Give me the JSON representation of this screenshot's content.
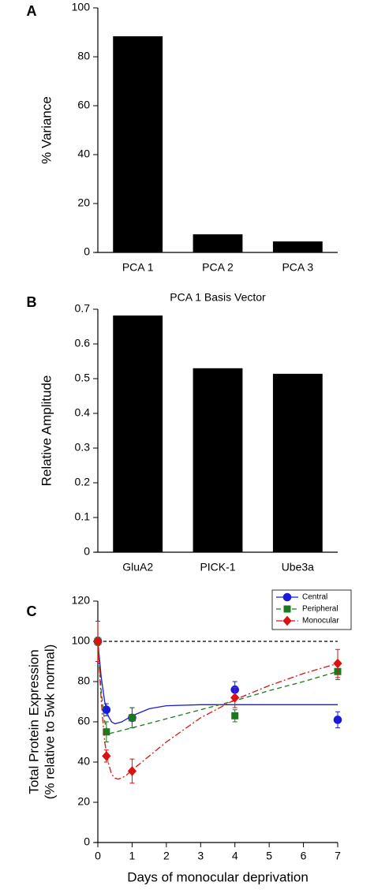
{
  "chart_data": [
    {
      "type": "bar",
      "panel_label": "A",
      "ylabel": "% Variance",
      "categories": [
        "PCA 1",
        "PCA 2",
        "PCA 3"
      ],
      "values": [
        88.4,
        7.4,
        4.5
      ],
      "color": "#000000",
      "ylim": [
        0,
        100
      ],
      "yticks": [
        0,
        20,
        40,
        60,
        80,
        100
      ]
    },
    {
      "type": "bar",
      "panel_label": "B",
      "title": "PCA 1 Basis Vector",
      "ylabel": "Relative Amplitude",
      "categories": [
        "GluA2",
        "PICK-1",
        "Ube3a"
      ],
      "values": [
        0.682,
        0.53,
        0.514
      ],
      "color": "#000000",
      "ylim": [
        0,
        0.7
      ],
      "yticks": [
        0,
        0.1,
        0.2,
        0.3,
        0.4,
        0.5,
        0.6,
        0.7
      ]
    },
    {
      "type": "line",
      "panel_label": "C",
      "xlabel": "Days of monocular deprivation",
      "ylabel": "Total Protein Expression",
      "ylabel_sub": "(% relative to 5wk normal)",
      "xlim": [
        0,
        7
      ],
      "xticks": [
        0,
        1,
        2,
        3,
        4,
        5,
        6,
        7
      ],
      "ylim": [
        0,
        120
      ],
      "yticks": [
        0,
        20,
        40,
        60,
        80,
        100,
        120
      ],
      "reference_line": 100,
      "legend": "upper right",
      "series": [
        {
          "name": "Central",
          "color": "#1a1adc",
          "marker": "circle",
          "linestyle": "solid",
          "x": [
            0,
            0.25,
            1,
            4,
            7
          ],
          "values": [
            100,
            66,
            62,
            76,
            61
          ],
          "errors": [
            2,
            3,
            5,
            4,
            4
          ],
          "fit_x": [
            0,
            0.1,
            0.2,
            0.3,
            0.4,
            0.5,
            0.7,
            1,
            1.5,
            2,
            3,
            4,
            5,
            6,
            7
          ],
          "fit_y": [
            100,
            82,
            70,
            63,
            60,
            59,
            60,
            63,
            66.5,
            68,
            68.5,
            68.5,
            68.5,
            68.5,
            68.5
          ]
        },
        {
          "name": "Peripheral",
          "color": "#1b7a1b",
          "marker": "square",
          "linestyle": "dashed",
          "x": [
            0,
            0.25,
            1,
            4,
            7
          ],
          "values": [
            100,
            55,
            62,
            63,
            85
          ],
          "errors": [
            2,
            5,
            5,
            3,
            4
          ],
          "fit_x": [
            0,
            0.1,
            0.2,
            0.3,
            1,
            2,
            3,
            4,
            5,
            6,
            7
          ],
          "fit_y": [
            100,
            75,
            60,
            54,
            57,
            61.5,
            66,
            70.5,
            75.5,
            80,
            85
          ]
        },
        {
          "name": "Monocular",
          "color": "#dd1111",
          "marker": "diamond",
          "linestyle": "dashdot",
          "x": [
            0,
            0.25,
            1,
            4,
            7
          ],
          "values": [
            100,
            43,
            35.5,
            72,
            89
          ],
          "errors": [
            10,
            3,
            6,
            5,
            7
          ],
          "fit_x": [
            0,
            0.1,
            0.2,
            0.3,
            0.4,
            0.5,
            0.6,
            0.8,
            1,
            1.5,
            2,
            3,
            4,
            5,
            6,
            7
          ],
          "fit_y": [
            100,
            70,
            50,
            40,
            34,
            32,
            31.5,
            33,
            36,
            43,
            50,
            62,
            71,
            78,
            84,
            89
          ]
        }
      ]
    }
  ]
}
